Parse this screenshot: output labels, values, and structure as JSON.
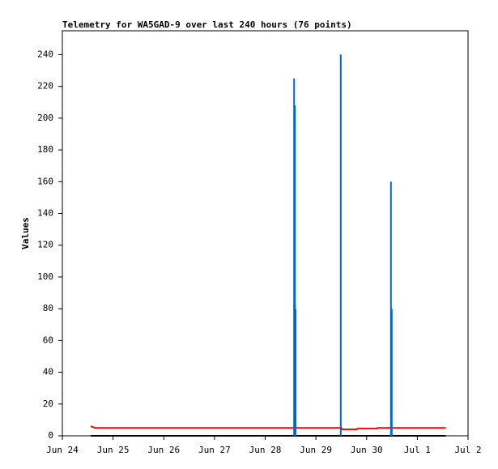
{
  "chart_data": {
    "type": "line",
    "title": "Telemetry for WA5GAD-9 over last 240 hours (76 points)",
    "y_label": "Values",
    "xlim": [
      24,
      32
    ],
    "xticks": [
      {
        "value": 24,
        "label": "Jun 24"
      },
      {
        "value": 25,
        "label": "Jun 25"
      },
      {
        "value": 26,
        "label": "Jun 26"
      },
      {
        "value": 27,
        "label": "Jun 27"
      },
      {
        "value": 28,
        "label": "Jun 28"
      },
      {
        "value": 29,
        "label": "Jun 29"
      },
      {
        "value": 30,
        "label": "Jun 30"
      },
      {
        "value": 31,
        "label": "Jul 1"
      },
      {
        "value": 32,
        "label": "Jul 2"
      }
    ],
    "ylim": [
      0,
      255
    ],
    "yticks": [
      0,
      20,
      40,
      60,
      80,
      100,
      120,
      140,
      160,
      180,
      200,
      220,
      240
    ],
    "grid": false,
    "series": [
      {
        "color": "#000000",
        "style": "line",
        "x": [
          24.56,
          31.56
        ],
        "values": [
          0,
          0
        ]
      },
      {
        "color": "#ff0000",
        "style": "line",
        "x": [
          24.56,
          24.6,
          24.65,
          29.5,
          29.52,
          29.8,
          29.82,
          30.2,
          30.22,
          31.56
        ],
        "values": [
          6,
          5.5,
          5,
          5,
          4,
          4,
          4.5,
          4.5,
          5,
          5
        ]
      },
      {
        "color": "#0066cc",
        "style": "impulse",
        "x": [
          28.57,
          28.585,
          28.6,
          29.49,
          30.48,
          30.495
        ],
        "values": [
          225,
          208,
          80,
          240,
          160,
          80
        ]
      }
    ]
  }
}
